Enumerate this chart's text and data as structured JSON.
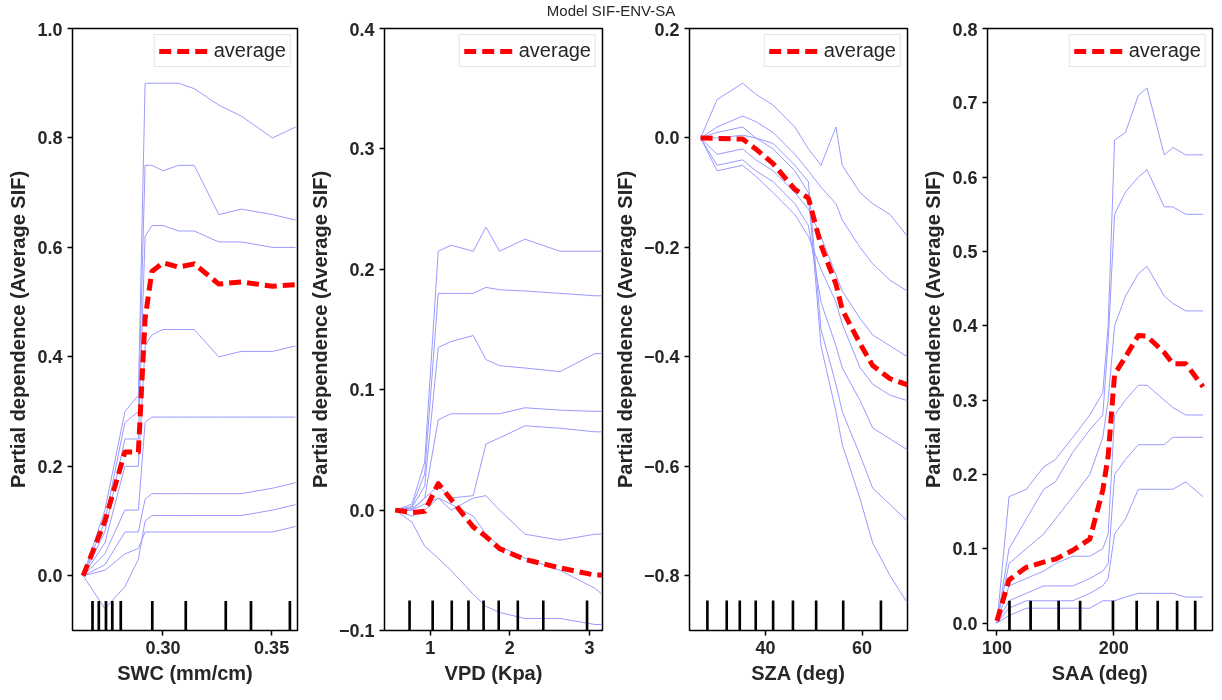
{
  "chart_data": [
    {
      "type": "other",
      "title": "Model SIF-ENV-SA"
    },
    {
      "type": "line",
      "xlabel": "SWC (mm/cm)",
      "ylabel": "Partial dependence (Average SIF)",
      "x": [
        0.2633,
        0.2733,
        0.2825,
        0.2887,
        0.2918,
        0.2949,
        0.3,
        0.3072,
        0.3144,
        0.3257,
        0.336,
        0.3504,
        0.361
      ],
      "xlim": [
        0.2584,
        0.3619
      ],
      "ylim": [
        -0.1,
        1.0
      ],
      "xticks": [
        {
          "value": 0.3,
          "label": "0.30"
        },
        {
          "value": 0.35,
          "label": "0.35"
        }
      ],
      "yticks": [
        {
          "value": 0.0,
          "label": "0.0"
        },
        {
          "value": 0.2,
          "label": "0.2"
        },
        {
          "value": 0.4,
          "label": "0.4"
        },
        {
          "value": 0.6,
          "label": "0.6"
        },
        {
          "value": 0.8,
          "label": "0.8"
        },
        {
          "value": 1.0,
          "label": "1.0"
        }
      ],
      "grid": false,
      "legend": "top right",
      "series": [
        {
          "color": "#9a9aff",
          "line_style": "solid",
          "values": [
            0,
            0.12,
            0.3,
            0.33,
            0.9,
            0.9,
            0.9,
            0.9,
            0.89,
            0.86,
            0.84,
            0.8,
            0.82
          ]
        },
        {
          "color": "#9a9aff",
          "line_style": "solid",
          "values": [
            0,
            0.1,
            0.28,
            0.3,
            0.75,
            0.75,
            0.74,
            0.75,
            0.75,
            0.66,
            0.67,
            0.66,
            0.65
          ]
        },
        {
          "color": "#9a9aff",
          "line_style": "solid",
          "values": [
            0,
            0.08,
            0.25,
            0.25,
            0.62,
            0.64,
            0.64,
            0.63,
            0.63,
            0.61,
            0.61,
            0.6,
            0.6
          ]
        },
        {
          "color": "#9a9aff",
          "line_style": "solid",
          "values": [
            0,
            0.06,
            0.2,
            0.2,
            0.42,
            0.44,
            0.45,
            0.45,
            0.45,
            0.4,
            0.41,
            0.41,
            0.42
          ]
        },
        {
          "color": "#9a9aff",
          "line_style": "solid",
          "values": [
            0,
            0.04,
            0.12,
            0.12,
            0.28,
            0.29,
            0.29,
            0.29,
            0.29,
            0.29,
            0.29,
            0.29,
            0.29
          ]
        },
        {
          "color": "#9a9aff",
          "line_style": "solid",
          "values": [
            0,
            0.02,
            0.08,
            0.08,
            0.14,
            0.15,
            0.15,
            0.15,
            0.15,
            0.15,
            0.15,
            0.16,
            0.17
          ]
        },
        {
          "color": "#9a9aff",
          "line_style": "solid",
          "values": [
            0,
            0.01,
            0.04,
            0.05,
            0.08,
            0.08,
            0.08,
            0.08,
            0.08,
            0.08,
            0.08,
            0.08,
            0.09
          ]
        },
        {
          "color": "#9a9aff",
          "line_style": "solid",
          "values": [
            0,
            -0.06,
            -0.02,
            0.03,
            0.1,
            0.11,
            0.11,
            0.11,
            0.11,
            0.11,
            0.11,
            0.12,
            0.13
          ]
        },
        {
          "name": "average",
          "color": "#ff0000",
          "line_style": "dashed",
          "values": [
            0,
            0.1,
            0.226,
            0.226,
            0.47,
            0.556,
            0.572,
            0.564,
            0.57,
            0.533,
            0.537,
            0.529,
            0.532
          ]
        },
        {
          "type": "bar",
          "color": "#000000",
          "x": [
            0.2676,
            0.2705,
            0.2738,
            0.2767,
            0.2806,
            0.2951,
            0.3105,
            0.3289,
            0.3405,
            0.3584
          ],
          "base": [
            -0.1,
            -0.1,
            -0.1,
            -0.1,
            -0.1,
            -0.1,
            -0.1,
            -0.1,
            -0.1,
            -0.1
          ],
          "values": [
            0.054,
            0.054,
            0.054,
            0.054,
            0.054,
            0.054,
            0.054,
            0.054,
            0.054,
            0.054
          ]
        }
      ]
    },
    {
      "type": "line",
      "xlabel": "VPD (Kpa)",
      "ylabel": "Partial dependence (Average SIF)",
      "x": [
        0.56,
        0.77,
        0.93,
        1.1,
        1.26,
        1.54,
        1.7,
        1.87,
        2.19,
        2.63,
        3.07,
        3.16
      ],
      "xlim": [
        0.425,
        3.164
      ],
      "ylim": [
        -0.1,
        0.4
      ],
      "xticks": [
        1,
        2,
        3
      ],
      "yticks": [
        {
          "value": -0.1,
          "label": "−0.1"
        },
        {
          "value": 0.0,
          "label": "0.0"
        },
        {
          "value": 0.1,
          "label": "0.1"
        },
        {
          "value": 0.2,
          "label": "0.2"
        },
        {
          "value": 0.3,
          "label": "0.3"
        },
        {
          "value": 0.4,
          "label": "0.4"
        }
      ],
      "grid": false,
      "legend": "top right",
      "series": [
        {
          "color": "#9a9aff",
          "line_style": "solid",
          "values": [
            0,
            0.005,
            0.04,
            0.215,
            0.22,
            0.215,
            0.235,
            0.215,
            0.225,
            0.215,
            0.215,
            0.215
          ]
        },
        {
          "color": "#9a9aff",
          "line_style": "solid",
          "values": [
            0,
            0.003,
            0.03,
            0.18,
            0.18,
            0.18,
            0.185,
            0.183,
            0.182,
            0.18,
            0.178,
            0.178
          ]
        },
        {
          "color": "#9a9aff",
          "line_style": "solid",
          "values": [
            0,
            0.002,
            0.02,
            0.135,
            0.14,
            0.145,
            0.125,
            0.12,
            0.118,
            0.115,
            0.13,
            0.13
          ]
        },
        {
          "color": "#9a9aff",
          "line_style": "solid",
          "values": [
            0,
            0.001,
            0.01,
            0.075,
            0.08,
            0.08,
            0.08,
            0.08,
            0.085,
            0.083,
            0.082,
            0.082
          ]
        },
        {
          "color": "#9a9aff",
          "line_style": "solid",
          "values": [
            0,
            0.0,
            0.01,
            0.02,
            0.01,
            0.012,
            0.055,
            0.06,
            0.07,
            0.068,
            0.065,
            0.065
          ]
        },
        {
          "color": "#9a9aff",
          "line_style": "solid",
          "values": [
            0,
            -0.005,
            0.0,
            0.01,
            0.005,
            -0.005,
            -0.02,
            -0.03,
            -0.04,
            -0.05,
            -0.065,
            -0.07
          ]
        },
        {
          "color": "#9a9aff",
          "line_style": "solid",
          "values": [
            0,
            -0.01,
            -0.03,
            -0.04,
            -0.05,
            -0.07,
            -0.08,
            -0.085,
            -0.09,
            -0.09,
            -0.095,
            -0.095
          ]
        },
        {
          "color": "#9a9aff",
          "line_style": "solid",
          "values": [
            0,
            0.0,
            0.005,
            0.01,
            0.0,
            0.01,
            0.012,
            0.0,
            -0.02,
            -0.025,
            -0.02,
            -0.02
          ]
        },
        {
          "name": "average",
          "color": "#ff0000",
          "line_style": "dashed",
          "values": [
            0,
            -0.002,
            -0.001,
            0.022,
            0.009,
            -0.014,
            -0.022,
            -0.032,
            -0.041,
            -0.048,
            -0.054,
            -0.054
          ]
        },
        {
          "type": "bar",
          "color": "#000000",
          "x": [
            0.74,
            1.03,
            1.27,
            1.48,
            1.67,
            1.86,
            2.1,
            2.42,
            2.97
          ],
          "base": [
            -0.1,
            -0.1,
            -0.1,
            -0.1,
            -0.1,
            -0.1,
            -0.1,
            -0.1,
            -0.1
          ],
          "values": [
            0.025,
            0.025,
            0.025,
            0.025,
            0.025,
            0.025,
            0.025,
            0.025,
            0.025
          ]
        }
      ]
    },
    {
      "type": "line",
      "xlabel": "SZA (deg)",
      "ylabel": "Partial dependence (Average SIF)",
      "x": [
        26.6,
        30,
        35.3,
        38,
        41.6,
        46.1,
        48.9,
        51.5,
        54.6,
        55.9,
        59.6,
        62.2,
        65.8,
        69.4
      ],
      "xlim": [
        24.3,
        69.4
      ],
      "ylim": [
        -0.9,
        0.2
      ],
      "xticks": [
        40,
        60
      ],
      "yticks": [
        {
          "value": -0.8,
          "label": "−0.8"
        },
        {
          "value": -0.6,
          "label": "−0.6"
        },
        {
          "value": -0.4,
          "label": "−0.4"
        },
        {
          "value": -0.2,
          "label": "−0.2"
        },
        {
          "value": 0.0,
          "label": "0.0"
        },
        {
          "value": 0.2,
          "label": "0.2"
        }
      ],
      "grid": false,
      "legend": "top right",
      "series": [
        {
          "color": "#9a9aff",
          "line_style": "solid",
          "values": [
            0,
            0.07,
            0.1,
            0.08,
            0.06,
            0.02,
            -0.02,
            -0.05,
            0.02,
            -0.05,
            -0.1,
            -0.12,
            -0.14,
            -0.18
          ]
        },
        {
          "color": "#9a9aff",
          "line_style": "solid",
          "values": [
            0,
            0.02,
            0.04,
            0.03,
            0.01,
            -0.03,
            -0.06,
            -0.09,
            -0.12,
            -0.15,
            -0.2,
            -0.23,
            -0.26,
            -0.28
          ]
        },
        {
          "color": "#9a9aff",
          "line_style": "solid",
          "values": [
            0,
            -0.03,
            -0.02,
            -0.04,
            -0.06,
            -0.1,
            -0.13,
            -0.18,
            -0.25,
            -0.28,
            -0.33,
            -0.36,
            -0.38,
            -0.4
          ]
        },
        {
          "color": "#9a9aff",
          "line_style": "solid",
          "values": [
            0,
            -0.05,
            -0.04,
            -0.06,
            -0.08,
            -0.12,
            -0.16,
            -0.3,
            -0.38,
            -0.42,
            -0.48,
            -0.53,
            -0.55,
            -0.57
          ]
        },
        {
          "color": "#9a9aff",
          "line_style": "solid",
          "values": [
            0,
            0.0,
            0.005,
            0.0,
            -0.01,
            -0.05,
            -0.08,
            -0.35,
            -0.45,
            -0.5,
            -0.58,
            -0.64,
            -0.67,
            -0.7
          ]
        },
        {
          "color": "#9a9aff",
          "line_style": "solid",
          "values": [
            0,
            0.01,
            0.02,
            0.0,
            -0.02,
            -0.06,
            -0.1,
            -0.38,
            -0.5,
            -0.56,
            -0.66,
            -0.74,
            -0.8,
            -0.85
          ]
        },
        {
          "color": "#9a9aff",
          "line_style": "solid",
          "values": [
            0,
            -0.06,
            -0.05,
            -0.07,
            -0.1,
            -0.14,
            -0.18,
            -0.24,
            -0.3,
            -0.34,
            -0.42,
            -0.45,
            -0.47,
            -0.48
          ]
        },
        {
          "name": "average",
          "color": "#ff0000",
          "line_style": "dashed",
          "values": [
            0,
            -0.001,
            -0.002,
            -0.02,
            -0.047,
            -0.094,
            -0.11,
            -0.196,
            -0.267,
            -0.314,
            -0.376,
            -0.416,
            -0.44,
            -0.451
          ]
        },
        {
          "type": "bar",
          "color": "#000000",
          "x": [
            28.0,
            32.0,
            34.7,
            38.0,
            41.6,
            45.7,
            50.5,
            56.1,
            63.9
          ],
          "base": [
            -0.9,
            -0.9,
            -0.9,
            -0.9,
            -0.9,
            -0.9,
            -0.9,
            -0.9,
            -0.9
          ],
          "values": [
            0.055,
            0.055,
            0.055,
            0.055,
            0.055,
            0.055,
            0.055,
            0.055,
            0.055
          ]
        }
      ]
    },
    {
      "type": "line",
      "xlabel": "SAA (deg)",
      "ylabel": "Partial dependence (Average SIF)",
      "x": [
        100,
        110.3,
        125.1,
        140,
        150,
        165,
        179.5,
        190.6,
        195.2,
        200.7,
        210,
        221,
        228.4,
        243.2,
        250.6,
        261.6,
        276.4
      ],
      "xlim": [
        91.9,
        284.5
      ],
      "ylim": [
        -0.01,
        0.8
      ],
      "xticks": [
        100,
        200
      ],
      "yticks": [
        {
          "value": 0.0,
          "label": "0.0"
        },
        {
          "value": 0.1,
          "label": "0.1"
        },
        {
          "value": 0.2,
          "label": "0.2"
        },
        {
          "value": 0.3,
          "label": "0.3"
        },
        {
          "value": 0.4,
          "label": "0.4"
        },
        {
          "value": 0.5,
          "label": "0.5"
        },
        {
          "value": 0.6,
          "label": "0.6"
        },
        {
          "value": 0.7,
          "label": "0.7"
        },
        {
          "value": 0.8,
          "label": "0.8"
        }
      ],
      "grid": false,
      "legend": "top right",
      "series": [
        {
          "color": "#9a9aff",
          "line_style": "solid",
          "values": [
            0,
            0.17,
            0.18,
            0.21,
            0.22,
            0.25,
            0.28,
            0.31,
            0.4,
            0.65,
            0.66,
            0.71,
            0.72,
            0.63,
            0.64,
            0.63,
            0.63
          ]
        },
        {
          "color": "#9a9aff",
          "line_style": "solid",
          "values": [
            0,
            0.1,
            0.14,
            0.18,
            0.19,
            0.23,
            0.26,
            0.28,
            0.38,
            0.55,
            0.58,
            0.6,
            0.61,
            0.56,
            0.56,
            0.55,
            0.55
          ]
        },
        {
          "color": "#9a9aff",
          "line_style": "solid",
          "values": [
            0,
            0.08,
            0.1,
            0.12,
            0.14,
            0.17,
            0.2,
            0.25,
            0.3,
            0.4,
            0.44,
            0.47,
            0.48,
            0.44,
            0.43,
            0.42,
            0.42
          ]
        },
        {
          "color": "#9a9aff",
          "line_style": "solid",
          "values": [
            0,
            0.05,
            0.06,
            0.07,
            0.08,
            0.09,
            0.09,
            0.1,
            0.12,
            0.28,
            0.3,
            0.32,
            0.32,
            0.3,
            0.29,
            0.28,
            0.28
          ]
        },
        {
          "color": "#9a9aff",
          "line_style": "solid",
          "values": [
            0,
            0.03,
            0.04,
            0.05,
            0.05,
            0.05,
            0.06,
            0.07,
            0.08,
            0.2,
            0.22,
            0.24,
            0.24,
            0.24,
            0.25,
            0.25,
            0.25
          ]
        },
        {
          "color": "#9a9aff",
          "line_style": "solid",
          "values": [
            0,
            0.02,
            0.03,
            0.03,
            0.03,
            0.03,
            0.04,
            0.05,
            0.06,
            0.12,
            0.14,
            0.18,
            0.18,
            0.18,
            0.18,
            0.19,
            0.17
          ]
        },
        {
          "color": "#9a9aff",
          "line_style": "solid",
          "values": [
            0,
            0.01,
            0.02,
            0.02,
            0.02,
            0.02,
            0.02,
            0.03,
            0.03,
            0.03,
            0.035,
            0.04,
            0.04,
            0.04,
            0.04,
            0.035,
            0.035
          ]
        },
        {
          "name": "average",
          "color": "#ff0000",
          "line_style": "dashed",
          "values": [
            0.003,
            0.058,
            0.075,
            0.082,
            0.086,
            0.098,
            0.113,
            0.179,
            0.225,
            0.335,
            0.358,
            0.387,
            0.386,
            0.364,
            0.349,
            0.349,
            0.318
          ]
        },
        {
          "type": "bar",
          "color": "#000000",
          "x": [
            110.7,
            128.8,
            152.8,
            171.2,
            199.3,
            219.6,
            237.6,
            254.2,
            269.7
          ],
          "base": [
            -0.01,
            -0.01,
            -0.01,
            -0.01,
            -0.01,
            -0.01,
            -0.01,
            -0.01,
            -0.01
          ],
          "values": [
            0.04,
            0.04,
            0.04,
            0.04,
            0.04,
            0.04,
            0.04,
            0.04,
            0.04
          ]
        }
      ]
    }
  ]
}
